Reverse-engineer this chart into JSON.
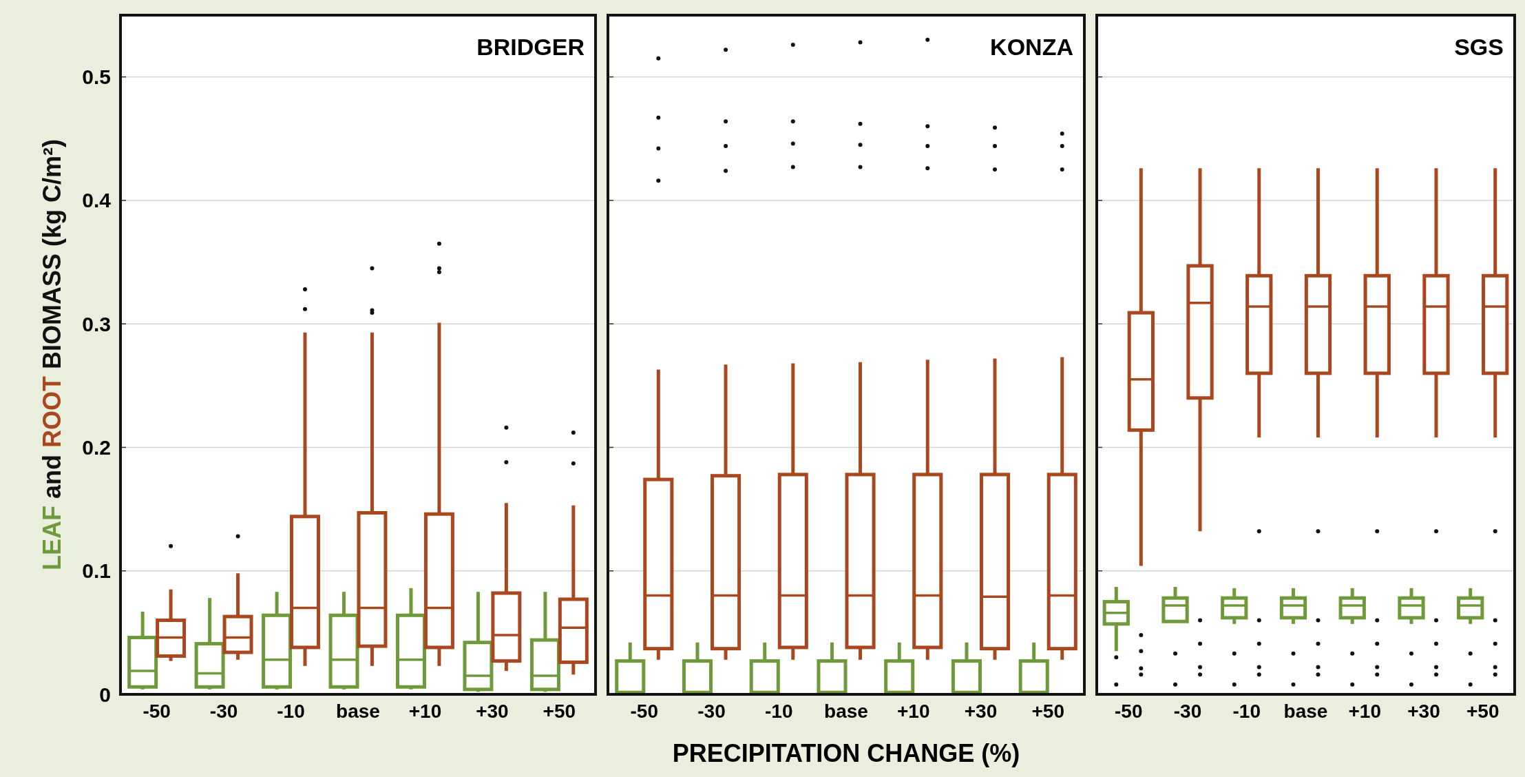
{
  "chart_data": [
    {
      "type": "box",
      "title": "BRIDGER",
      "ylabel": "LEAF and ROOT BIOMASS (kg C/m²)",
      "categories": [
        "-50",
        "-30",
        "-10",
        "base",
        "+10",
        "+30",
        "+50"
      ],
      "ylim": [
        0,
        0.55
      ],
      "yticks": [
        0,
        0.1,
        0.2,
        0.3,
        0.4,
        0.5
      ],
      "grid": "y",
      "series": [
        {
          "color": "#6f9a3b",
          "boxes": [
            {
              "low": 0.004,
              "q1": 0.006,
              "median": 0.019,
              "q3": 0.046,
              "high": 0.067
            },
            {
              "low": 0.004,
              "q1": 0.006,
              "median": 0.017,
              "q3": 0.041,
              "high": 0.078
            },
            {
              "low": 0.004,
              "q1": 0.006,
              "median": 0.028,
              "q3": 0.064,
              "high": 0.083
            },
            {
              "low": 0.004,
              "q1": 0.006,
              "median": 0.028,
              "q3": 0.064,
              "high": 0.083
            },
            {
              "low": 0.004,
              "q1": 0.006,
              "median": 0.028,
              "q3": 0.064,
              "high": 0.086
            },
            {
              "low": 0.002,
              "q1": 0.004,
              "median": 0.015,
              "q3": 0.042,
              "high": 0.083
            },
            {
              "low": 0.002,
              "q1": 0.004,
              "median": 0.015,
              "q3": 0.044,
              "high": 0.083
            }
          ]
        },
        {
          "color": "#a9471f",
          "boxes": [
            {
              "low": 0.027,
              "q1": 0.031,
              "median": 0.046,
              "q3": 0.06,
              "high": 0.085,
              "outliers": [
                0.12
              ]
            },
            {
              "low": 0.028,
              "q1": 0.034,
              "median": 0.046,
              "q3": 0.063,
              "high": 0.098,
              "outliers": [
                0.128
              ]
            },
            {
              "low": 0.023,
              "q1": 0.038,
              "median": 0.07,
              "q3": 0.144,
              "high": 0.293,
              "outliers": [
                0.312,
                0.328
              ]
            },
            {
              "low": 0.023,
              "q1": 0.039,
              "median": 0.07,
              "q3": 0.147,
              "high": 0.293,
              "outliers": [
                0.309,
                0.311,
                0.345
              ]
            },
            {
              "low": 0.023,
              "q1": 0.038,
              "median": 0.07,
              "q3": 0.146,
              "high": 0.301,
              "outliers": [
                0.342,
                0.345,
                0.365
              ]
            },
            {
              "low": 0.019,
              "q1": 0.027,
              "median": 0.048,
              "q3": 0.082,
              "high": 0.155,
              "outliers": [
                0.188,
                0.216
              ]
            },
            {
              "low": 0.016,
              "q1": 0.026,
              "median": 0.054,
              "q3": 0.077,
              "high": 0.153,
              "outliers": [
                0.187,
                0.212
              ]
            }
          ]
        }
      ]
    },
    {
      "type": "box",
      "title": "KONZA",
      "xlabel": "PRECIPITATION CHANGE (%)",
      "categories": [
        "-50",
        "-30",
        "-10",
        "base",
        "+10",
        "+30",
        "+50"
      ],
      "ylim": [
        0,
        0.55
      ],
      "yticks": [
        0,
        0.1,
        0.2,
        0.3,
        0.4,
        0.5
      ],
      "grid": "y",
      "tick_labels": "x",
      "series": [
        {
          "color": "#6f9a3b",
          "boxes": [
            {
              "low": 0,
              "q1": 0.001,
              "median": 0.002,
              "q3": 0.027,
              "high": 0.042
            },
            {
              "low": 0,
              "q1": 0.001,
              "median": 0.002,
              "q3": 0.027,
              "high": 0.042
            },
            {
              "low": 0,
              "q1": 0.001,
              "median": 0.002,
              "q3": 0.027,
              "high": 0.042
            },
            {
              "low": 0,
              "q1": 0.001,
              "median": 0.002,
              "q3": 0.027,
              "high": 0.042
            },
            {
              "low": 0,
              "q1": 0.001,
              "median": 0.002,
              "q3": 0.027,
              "high": 0.042
            },
            {
              "low": 0,
              "q1": 0.001,
              "median": 0.002,
              "q3": 0.027,
              "high": 0.042
            },
            {
              "low": 0,
              "q1": 0.001,
              "median": 0.002,
              "q3": 0.027,
              "high": 0.042
            }
          ]
        },
        {
          "color": "#a9471f",
          "boxes": [
            {
              "low": 0.028,
              "q1": 0.037,
              "median": 0.08,
              "q3": 0.174,
              "high": 0.263,
              "outliers": [
                0.416,
                0.442,
                0.467,
                0.515
              ]
            },
            {
              "low": 0.028,
              "q1": 0.037,
              "median": 0.08,
              "q3": 0.177,
              "high": 0.267,
              "outliers": [
                0.424,
                0.444,
                0.464,
                0.522
              ]
            },
            {
              "low": 0.028,
              "q1": 0.038,
              "median": 0.08,
              "q3": 0.178,
              "high": 0.268,
              "outliers": [
                0.427,
                0.446,
                0.464,
                0.526
              ]
            },
            {
              "low": 0.028,
              "q1": 0.038,
              "median": 0.08,
              "q3": 0.178,
              "high": 0.269,
              "outliers": [
                0.427,
                0.445,
                0.462,
                0.528
              ]
            },
            {
              "low": 0.028,
              "q1": 0.038,
              "median": 0.08,
              "q3": 0.178,
              "high": 0.271,
              "outliers": [
                0.426,
                0.444,
                0.46,
                0.53
              ]
            },
            {
              "low": 0.028,
              "q1": 0.037,
              "median": 0.079,
              "q3": 0.178,
              "high": 0.272,
              "outliers": [
                0.425,
                0.444,
                0.459
              ]
            },
            {
              "low": 0.028,
              "q1": 0.037,
              "median": 0.08,
              "q3": 0.178,
              "high": 0.273,
              "outliers": [
                0.425,
                0.444,
                0.454
              ]
            }
          ]
        }
      ]
    },
    {
      "type": "box",
      "title": "SGS",
      "categories": [
        "-50",
        "-30",
        "-10",
        "base",
        "+10",
        "+30",
        "+50"
      ],
      "ylim": [
        0,
        0.55
      ],
      "yticks": [
        0,
        0.1,
        0.2,
        0.3,
        0.4,
        0.5
      ],
      "grid": "y",
      "tick_labels": "x",
      "series": [
        {
          "color": "#6f9a3b",
          "boxes": [
            {
              "low": 0.035,
              "q1": 0.057,
              "median": 0.066,
              "q3": 0.075,
              "high": 0.087,
              "outliers": [
                0.008,
                0.03
              ]
            },
            {
              "low": 0.058,
              "q1": 0.059,
              "median": 0.072,
              "q3": 0.078,
              "high": 0.087,
              "outliers": [
                0.008,
                0.033
              ]
            },
            {
              "low": 0.057,
              "q1": 0.062,
              "median": 0.072,
              "q3": 0.078,
              "high": 0.086,
              "outliers": [
                0.008,
                0.033
              ]
            },
            {
              "low": 0.057,
              "q1": 0.062,
              "median": 0.072,
              "q3": 0.078,
              "high": 0.086,
              "outliers": [
                0.008,
                0.033
              ]
            },
            {
              "low": 0.057,
              "q1": 0.062,
              "median": 0.072,
              "q3": 0.078,
              "high": 0.086,
              "outliers": [
                0.008,
                0.033
              ]
            },
            {
              "low": 0.057,
              "q1": 0.062,
              "median": 0.072,
              "q3": 0.078,
              "high": 0.086,
              "outliers": [
                0.008,
                0.033
              ]
            },
            {
              "low": 0.057,
              "q1": 0.062,
              "median": 0.072,
              "q3": 0.078,
              "high": 0.086,
              "outliers": [
                0.008,
                0.033
              ]
            }
          ]
        },
        {
          "color": "#a9471f",
          "boxes": [
            {
              "low": 0.104,
              "q1": 0.214,
              "median": 0.255,
              "q3": 0.309,
              "high": 0.426,
              "outliers": [
                0.016,
                0.021,
                0.035,
                0.048
              ]
            },
            {
              "low": 0.132,
              "q1": 0.24,
              "median": 0.317,
              "q3": 0.347,
              "high": 0.426,
              "outliers": [
                0.016,
                0.022,
                0.041,
                0.06
              ]
            },
            {
              "low": 0.208,
              "q1": 0.26,
              "median": 0.314,
              "q3": 0.339,
              "high": 0.426,
              "outliers": [
                0.016,
                0.022,
                0.041,
                0.06,
                0.132
              ]
            },
            {
              "low": 0.208,
              "q1": 0.26,
              "median": 0.314,
              "q3": 0.339,
              "high": 0.426,
              "outliers": [
                0.016,
                0.022,
                0.041,
                0.06,
                0.132
              ]
            },
            {
              "low": 0.208,
              "q1": 0.26,
              "median": 0.314,
              "q3": 0.339,
              "high": 0.426,
              "outliers": [
                0.016,
                0.022,
                0.041,
                0.06,
                0.132
              ]
            },
            {
              "low": 0.208,
              "q1": 0.26,
              "median": 0.314,
              "q3": 0.339,
              "high": 0.426,
              "outliers": [
                0.016,
                0.022,
                0.041,
                0.06,
                0.132
              ]
            },
            {
              "low": 0.208,
              "q1": 0.26,
              "median": 0.314,
              "q3": 0.339,
              "high": 0.426,
              "outliers": [
                0.016,
                0.022,
                0.041,
                0.06,
                0.132
              ]
            }
          ]
        }
      ]
    }
  ]
}
